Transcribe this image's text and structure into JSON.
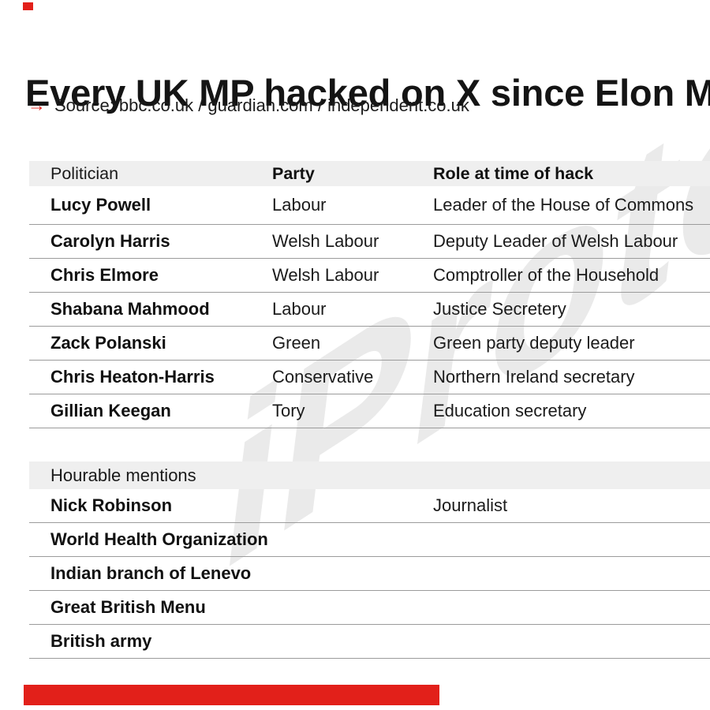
{
  "accent_red": "#e2201a",
  "title": "Every UK MP hacked on X since Elon M",
  "source": {
    "arrow": "→",
    "text": "Source: bbc.co.uk / guardian.com / independent.co.uk"
  },
  "watermark": "iProto",
  "table": {
    "headers": [
      {
        "label": "Politician",
        "bold": false
      },
      {
        "label": "Party",
        "bold": true
      },
      {
        "label": "Role at time of hack",
        "bold": true
      }
    ],
    "rows": [
      {
        "politician": "Lucy Powell",
        "party": "Labour",
        "role": "Leader of the House of Commons"
      },
      {
        "politician": "Carolyn Harris",
        "party": "Welsh Labour",
        "role": "Deputy Leader of Welsh Labour"
      },
      {
        "politician": "Chris Elmore",
        "party": "Welsh Labour",
        "role": "Comptroller of the Household"
      },
      {
        "politician": "Shabana Mahmood",
        "party": "Labour",
        "role": "Justice Secretery"
      },
      {
        "politician": "Zack Polanski",
        "party": "Green",
        "role": "Green party deputy leader"
      },
      {
        "politician": "Chris Heaton-Harris",
        "party": "Conservative",
        "role": "Northern Ireland secretary"
      },
      {
        "politician": "Gillian Keegan",
        "party": "Tory",
        "role": "Education secretary"
      }
    ]
  },
  "mentions": {
    "header": "Hourable mentions",
    "rows": [
      {
        "name": "Nick Robinson",
        "party": "",
        "role": "Journalist"
      },
      {
        "name": "World Health Organization",
        "party": "",
        "role": ""
      },
      {
        "name": "Indian branch of Lenevo",
        "party": "",
        "role": ""
      },
      {
        "name": "Great British Menu",
        "party": "",
        "role": ""
      },
      {
        "name": "British army",
        "party": "",
        "role": ""
      }
    ]
  }
}
